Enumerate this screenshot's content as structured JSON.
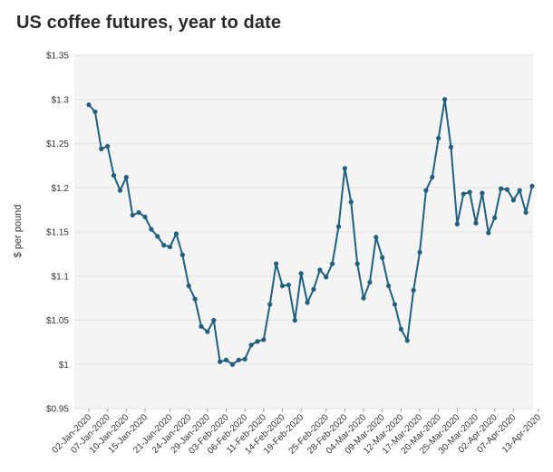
{
  "chart_data": {
    "type": "line",
    "title": "US coffee futures, year to date",
    "xlabel": "",
    "ylabel": "$ per pound",
    "ylim": [
      0.95,
      1.35
    ],
    "y_ticks": [
      0.95,
      1.0,
      1.05,
      1.1,
      1.15,
      1.2,
      1.25,
      1.3,
      1.35
    ],
    "y_tick_labels": [
      "$0.95",
      "$1",
      "$1.05",
      "$1.1",
      "$1.15",
      "$1.2",
      "$1.25",
      "$1.3",
      "$1.35"
    ],
    "grid": true,
    "legend": "none",
    "x_tick_labels": [
      "02-Jan-2020",
      "07-Jan-2020",
      "10-Jan-2020",
      "15-Jan-2020",
      "21-Jan-2020",
      "24-Jan-2020",
      "29-Jan-2020",
      "03-Feb-2020",
      "06-Feb-2020",
      "11-Feb-2020",
      "14-Feb-2020",
      "19-Feb-2020",
      "25-Feb-2020",
      "28-Feb-2020",
      "04-Mar-2020",
      "09-Mar-2020",
      "12-Mar-2020",
      "17-Mar-2020",
      "20-Mar-2020",
      "25-Mar-2020",
      "30-Mar-2020",
      "02-Apr-2020",
      "07-Apr-2020",
      "13-Apr-2020"
    ],
    "x_tick_index": [
      0,
      3,
      6,
      9,
      13,
      16,
      19,
      22,
      25,
      28,
      31,
      34,
      38,
      41,
      44,
      47,
      50,
      53,
      56,
      59,
      62,
      65,
      68,
      72
    ],
    "series": [
      {
        "name": "",
        "color": "#1f5f7f",
        "values": [
          1.294,
          1.286,
          1.244,
          1.247,
          1.214,
          1.197,
          1.212,
          1.169,
          1.172,
          1.167,
          1.153,
          1.145,
          1.135,
          1.133,
          1.148,
          1.124,
          1.089,
          1.074,
          1.043,
          1.037,
          1.05,
          1.003,
          1.005,
          1.0,
          1.005,
          1.006,
          1.022,
          1.026,
          1.028,
          1.068,
          1.114,
          1.089,
          1.09,
          1.05,
          1.103,
          1.07,
          1.085,
          1.107,
          1.099,
          1.114,
          1.156,
          1.222,
          1.184,
          1.114,
          1.075,
          1.093,
          1.144,
          1.121,
          1.089,
          1.068,
          1.04,
          1.027,
          1.084,
          1.127,
          1.197,
          1.212,
          1.256,
          1.3,
          1.246,
          1.159,
          1.193,
          1.195,
          1.16,
          1.194,
          1.149,
          1.166,
          1.199,
          1.198,
          1.186,
          1.197,
          1.172,
          1.202
        ]
      }
    ]
  }
}
